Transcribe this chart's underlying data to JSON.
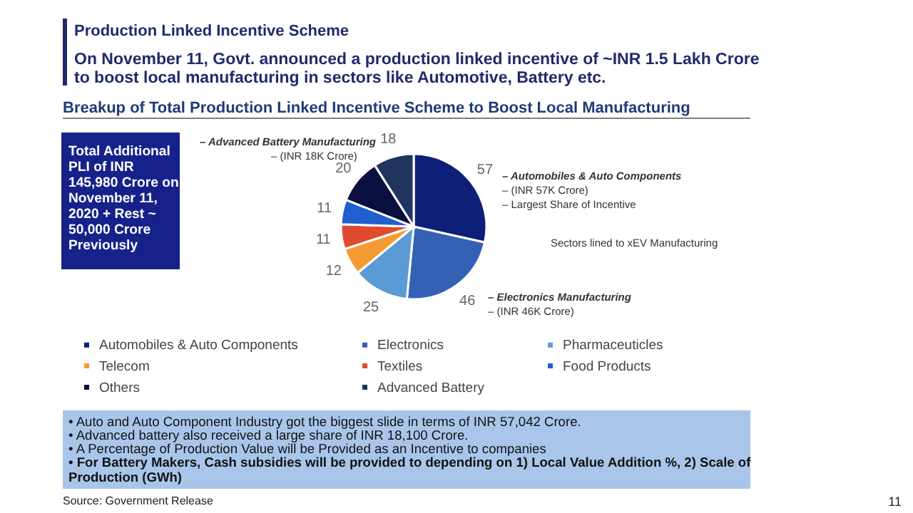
{
  "chart_data": {
    "type": "pie",
    "title": "Breakup of Total Production Linked Incentive Scheme to Boost Local Manufacturing",
    "categories": [
      "Automobiles & Auto Components",
      "Electronics",
      "Pharmaceuticles",
      "Telecom",
      "Textiles",
      "Food Products",
      "Others",
      "Advanced Battery"
    ],
    "values": [
      57,
      46,
      25,
      12,
      11,
      11,
      20,
      18
    ],
    "colors": [
      "#0e1f7a",
      "#3461b3",
      "#5b9bd5",
      "#f59b33",
      "#e04b2f",
      "#1f5fce",
      "#0b0f3f",
      "#1f355e"
    ],
    "data_labels": true,
    "legend": "bottom",
    "annotations": [
      "Production Linked Incentive Scheme",
      "On November 11, Govt. announced a production linked incentive of ~INR 1.5 Lakh Crore\nto boost local manufacturing in sectors like Automotive, Battery etc.",
      "Total Additional\nPLI of INR\n145,980 Crore on\nNovember 11,\n2020 + Rest ~\n50,000 Crore\nPreviously",
      "– Advanced Battery Manufacturing",
      "– (INR 18K Crore)",
      "– Automobiles & Auto Components",
      "– (INR 57K Crore)",
      "– Largest Share of Incentive",
      "Sectors lined to xEV Manufacturing",
      "– Electronics Manufacturing",
      "– (INR 46K Crore)",
      "•   Auto and Auto Component Industry got the biggest slide in terms of INR 57,042 Crore.",
      "•   Advanced battery also received a large share of INR 18,100 Crore.",
      "•   A Percentage of Production Value will be Provided as an Incentive to companies",
      "•   For Battery Makers, Cash subsidies will be provided to depending on 1) Local Value Addition %, 2) Scale of\n     Production (GWh)",
      "Source: Government Release",
      "11"
    ]
  }
}
